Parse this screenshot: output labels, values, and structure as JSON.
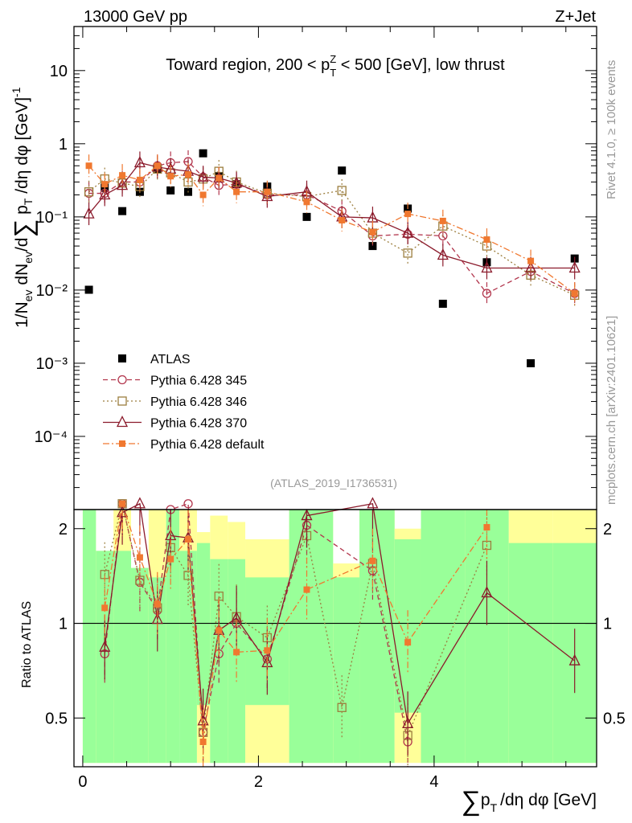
{
  "header": {
    "energy_label": "13000 GeV pp",
    "process_label": "Z+Jet"
  },
  "side_labels": {
    "rivet": "Rivet 4.1.0, ≥ 100k events",
    "mcplots": "mcplots.cern.ch [arXiv:2401.10621]"
  },
  "chart_data": {
    "type": "scatter",
    "title": "Toward region, 200 < p_T^Z < 500 [GeV], low thrust",
    "title_parts": {
      "prefix": "Toward region, 200 < p",
      "sup": "Z",
      "sub": "T",
      "suffix": " < 500 [GeV], low thrust"
    },
    "analysis_id": "(ATLAS_2019_I1736531)",
    "xlabel": "∑ p_T /dη dφ [GeV]",
    "xlabel_parts": {
      "sum": "∑",
      "p": "p",
      "sub": "T",
      "rest": "/dη dφ [GeV]"
    },
    "ylabel": "1/N_ev dN_ev/d∑ p_T /dη dφ [GeV]^-1",
    "ylabel_parts": {
      "a": "1/N",
      "a_sub": "ev",
      "b": " dN",
      "b_sub": "ev",
      "c": "/d",
      "sum": "∑",
      "d": " p",
      "d_sub": "T",
      "e": " /dη dφ  [GeV]",
      "e_sup": "-1"
    },
    "ratio_ylabel": "Ratio to ATLAS",
    "xlim": [
      -0.1,
      5.85
    ],
    "ylim": [
      1e-05,
      40
    ],
    "yscale": "log",
    "ratio_ylim": [
      0.35,
      2.3
    ],
    "x_ticks": [
      0,
      2,
      4
    ],
    "y_ticks": [
      {
        "value": 10,
        "label": "10"
      },
      {
        "value": 1,
        "label": "1"
      },
      {
        "value": 0.1,
        "label": "10⁻¹"
      },
      {
        "value": 0.01,
        "label": "10⁻²"
      },
      {
        "value": 0.001,
        "label": "10⁻³"
      },
      {
        "value": 0.0001,
        "label": "10⁻⁴"
      }
    ],
    "ratio_ticks": [
      {
        "value": 2,
        "label": "2"
      },
      {
        "value": 1,
        "label": "1"
      },
      {
        "value": 0.5,
        "label": "0.5"
      }
    ],
    "legend_position": "middle-left",
    "bin_edges": [
      0,
      0.15,
      0.35,
      0.55,
      0.75,
      0.95,
      1.1,
      1.3,
      1.45,
      1.65,
      1.85,
      2.35,
      2.85,
      3.15,
      3.55,
      3.85,
      4.35,
      4.85,
      5.35,
      5.85
    ],
    "series": [
      {
        "name": "ATLAS",
        "label": "ATLAS",
        "color": "#000000",
        "marker": "square-filled",
        "x": [
          0.07,
          0.25,
          0.45,
          0.65,
          0.85,
          1.0,
          1.2,
          1.37,
          1.55,
          1.75,
          2.1,
          2.55,
          2.95,
          3.3,
          3.7,
          4.1,
          4.6,
          5.1,
          5.6
        ],
        "y": [
          0.0101,
          0.25,
          0.12,
          0.22,
          0.45,
          0.23,
          0.22,
          0.74,
          0.36,
          0.28,
          0.26,
          0.1,
          0.43,
          0.04,
          0.13,
          0.0065,
          0.024,
          0.001,
          0.027
        ]
      },
      {
        "name": "Pythia 6.428 345",
        "label": "Pythia 6.428 345",
        "color": "#b2364d",
        "marker": "circle-open",
        "linestyle": "dashed",
        "x": [
          0.07,
          0.25,
          0.45,
          0.65,
          0.85,
          1.0,
          1.2,
          1.37,
          1.55,
          1.75,
          2.1,
          2.55,
          2.95,
          3.3,
          3.7,
          4.1,
          4.6,
          5.1,
          5.6
        ],
        "y": [
          0.21,
          0.21,
          0.3,
          0.3,
          0.5,
          0.55,
          0.57,
          0.35,
          0.27,
          0.28,
          0.2,
          0.2,
          0.12,
          0.055,
          0.058,
          0.055,
          0.009,
          0.018,
          0.009
        ]
      },
      {
        "name": "Pythia 6.428 346",
        "label": "Pythia 6.428 346",
        "color": "#9c7e3e",
        "marker": "square-open",
        "linestyle": "dotted",
        "x": [
          0.07,
          0.25,
          0.45,
          0.65,
          0.85,
          1.0,
          1.2,
          1.37,
          1.55,
          1.75,
          2.1,
          2.55,
          2.95,
          3.3,
          3.7,
          4.1,
          4.6,
          5.1,
          5.6
        ],
        "y": [
          0.22,
          0.33,
          0.29,
          0.26,
          0.45,
          0.4,
          0.3,
          0.33,
          0.42,
          0.3,
          0.21,
          0.19,
          0.23,
          0.06,
          0.032,
          0.075,
          0.04,
          0.016,
          0.0085
        ]
      },
      {
        "name": "Pythia 6.428 370",
        "label": "Pythia 6.428 370",
        "color": "#8b1a2b",
        "marker": "triangle-open",
        "linestyle": "solid",
        "x": [
          0.07,
          0.25,
          0.45,
          0.65,
          0.85,
          1.0,
          1.2,
          1.37,
          1.55,
          1.75,
          2.1,
          2.55,
          2.95,
          3.3,
          3.7,
          4.1,
          4.6,
          5.1,
          5.6
        ],
        "y": [
          0.11,
          0.2,
          0.27,
          0.55,
          0.48,
          0.45,
          0.42,
          0.35,
          0.34,
          0.29,
          0.19,
          0.22,
          0.1,
          0.097,
          0.06,
          0.03,
          0.02,
          0.02,
          0.02
        ]
      },
      {
        "name": "Pythia 6.428 default",
        "label": "Pythia 6.428 default",
        "color": "#f07830",
        "marker": "square-filled-small",
        "linestyle": "dashdot",
        "x": [
          0.07,
          0.25,
          0.45,
          0.65,
          0.85,
          1.0,
          1.2,
          1.37,
          1.55,
          1.75,
          2.1,
          2.55,
          2.95,
          3.3,
          3.7,
          4.1,
          4.6,
          5.1,
          5.6
        ],
        "y": [
          0.5,
          0.28,
          0.37,
          0.32,
          0.5,
          0.36,
          0.38,
          0.2,
          0.34,
          0.22,
          0.22,
          0.16,
          0.09,
          0.062,
          0.11,
          0.088,
          0.049,
          0.025,
          0.009
        ]
      }
    ],
    "ratio_series": [
      {
        "name": "Pythia 6.428 345",
        "x": [
          0.25,
          0.45,
          0.65,
          0.85,
          1.0,
          1.2,
          1.37,
          1.55,
          1.75,
          2.1,
          2.55,
          3.3,
          3.7
        ],
        "y": [
          0.8,
          2.4,
          1.35,
          1.1,
          2.3,
          2.4,
          0.45,
          0.8,
          1.0,
          0.77,
          2.05,
          1.47,
          0.42
        ]
      },
      {
        "name": "Pythia 6.428 346",
        "x": [
          0.25,
          0.45,
          0.65,
          0.85,
          1.0,
          1.2,
          1.37,
          1.55,
          1.75,
          2.1,
          2.55,
          2.95,
          3.3,
          3.7,
          4.6
        ],
        "y": [
          1.43,
          2.4,
          1.37,
          1.12,
          1.74,
          1.42,
          0.45,
          1.22,
          1.05,
          0.9,
          1.9,
          0.54,
          1.55,
          0.44,
          1.77
        ]
      },
      {
        "name": "Pythia 6.428 370",
        "x": [
          0.25,
          0.45,
          0.65,
          0.85,
          1.0,
          1.2,
          1.37,
          1.55,
          1.75,
          2.1,
          2.55,
          3.3,
          3.7,
          4.6,
          5.6
        ],
        "y": [
          0.84,
          2.25,
          2.4,
          1.03,
          1.9,
          1.87,
          0.49,
          0.95,
          1.04,
          0.75,
          2.2,
          2.4,
          0.48,
          1.25,
          0.76
        ]
      },
      {
        "name": "Pythia 6.428 default",
        "x": [
          0.25,
          0.45,
          0.65,
          0.85,
          1.0,
          1.2,
          1.37,
          1.55,
          1.75,
          2.1,
          2.55,
          3.3,
          3.7,
          4.6
        ],
        "y": [
          1.12,
          2.4,
          1.62,
          1.15,
          1.6,
          1.85,
          0.42,
          0.95,
          0.81,
          0.82,
          1.28,
          1.58,
          0.87,
          2.02
        ]
      }
    ]
  }
}
